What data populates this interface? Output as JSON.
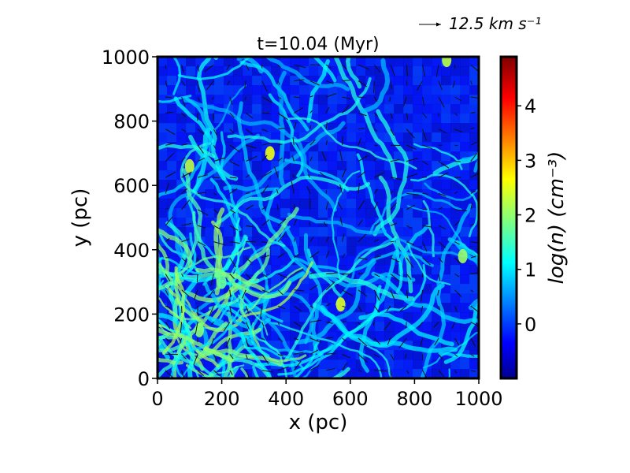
{
  "chart_data": {
    "type": "heatmap",
    "title": "t=10.04 (Myr)",
    "xlabel": "x (pc)",
    "ylabel": "y (pc)",
    "xlim": [
      0,
      1000
    ],
    "ylim": [
      0,
      1000
    ],
    "xticks": [
      "0",
      "200",
      "400",
      "600",
      "800",
      "1000"
    ],
    "yticks": [
      "0",
      "200",
      "400",
      "600",
      "800",
      "1000"
    ],
    "colorbar": {
      "label": "log(n) (cm⁻³)",
      "range": [
        -1,
        4.9
      ],
      "ticks": [
        "0",
        "1",
        "2",
        "3",
        "4"
      ],
      "tick_values": [
        0,
        1,
        2,
        3,
        4
      ],
      "colormap": "jet"
    },
    "quiver_key": {
      "label": "12.5 km s⁻¹",
      "value": 12.5
    },
    "dense_filaments": [
      {
        "x": 350,
        "y": 700,
        "logn": 2.6
      },
      {
        "x": 100,
        "y": 660,
        "logn": 2.3
      },
      {
        "x": 570,
        "y": 230,
        "logn": 2.5
      },
      {
        "x": 950,
        "y": 380,
        "logn": 2.1
      },
      {
        "x": 900,
        "y": 990,
        "logn": 2.3
      },
      {
        "x": 130,
        "y": 150,
        "logn": 2.0
      },
      {
        "x": 200,
        "y": 300,
        "logn": 1.8
      }
    ]
  },
  "colors": {
    "background": "#ffffff",
    "axes": "#000000",
    "jet_low": "#00008f",
    "jet_high": "#800000"
  }
}
